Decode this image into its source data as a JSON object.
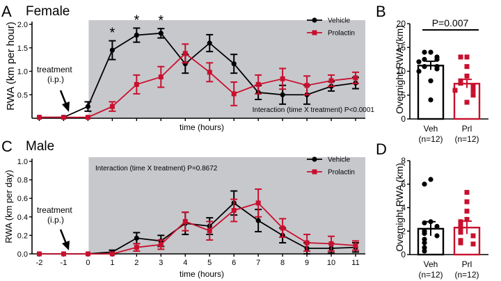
{
  "chart_data": [
    {
      "panel": "A",
      "title": "Female",
      "type": "line",
      "xlabel": "time (hours)",
      "ylabel": "RWA (km per hour)",
      "xlim": [
        -2.3,
        11.4
      ],
      "ylim": [
        0,
        2.0
      ],
      "yticks": [
        "0.5",
        "1.0",
        "1.5",
        "2.0"
      ],
      "shaded_from": 0,
      "treatment_label": "treatment\n(i.p.)",
      "annotation": "Interaction (time X treatment) P<0.0001",
      "significance_marks": [
        {
          "x": 1,
          "label": "*"
        },
        {
          "x": 2,
          "label": "*"
        },
        {
          "x": 3,
          "label": "*"
        }
      ],
      "x": [
        -2,
        -1,
        0,
        1,
        2,
        3,
        4,
        5,
        6,
        7,
        8,
        9,
        10,
        11
      ],
      "series": [
        {
          "name": "Vehicle",
          "color": "#000000",
          "marker": "circle",
          "values": [
            0.02,
            0.02,
            0.25,
            1.45,
            1.77,
            1.81,
            1.16,
            1.6,
            1.16,
            0.55,
            0.5,
            0.5,
            0.68,
            0.75
          ],
          "errors": [
            0.0,
            0.0,
            0.1,
            0.2,
            0.15,
            0.1,
            0.2,
            0.18,
            0.2,
            0.15,
            0.2,
            0.2,
            0.1,
            0.12
          ]
        },
        {
          "name": "Prolactin",
          "color": "#c8102e",
          "marker": "square",
          "values": [
            0.02,
            0.02,
            0.02,
            0.25,
            0.72,
            0.88,
            1.38,
            0.98,
            0.52,
            0.72,
            0.84,
            0.7,
            0.8,
            0.86
          ],
          "errors": [
            0.0,
            0.0,
            0.0,
            0.1,
            0.2,
            0.22,
            0.2,
            0.2,
            0.25,
            0.2,
            0.22,
            0.2,
            0.12,
            0.12
          ]
        }
      ]
    },
    {
      "panel": "B",
      "type": "bar",
      "ylabel": "Overnight RWA (km)",
      "ylim": [
        0,
        20
      ],
      "yticks": [
        "0",
        "5",
        "10",
        "15",
        "20"
      ],
      "categories": [
        "Veh\n(n=12)",
        "Prl\n(n=12)"
      ],
      "colors": [
        "#000000",
        "#c8102e"
      ],
      "values": [
        11.2,
        7.4
      ],
      "errors": [
        0.9,
        0.9
      ],
      "points": [
        [
          14,
          14,
          13,
          12.5,
          12.5,
          12,
          11,
          11,
          10.5,
          10,
          8,
          4
        ],
        [
          13,
          13,
          11,
          9,
          8,
          7.5,
          7,
          6.5,
          6,
          6,
          5,
          3.5
        ]
      ],
      "significance": "P=0.007"
    },
    {
      "panel": "C",
      "title": "Male",
      "type": "line",
      "xlabel": "time (hours)",
      "ylabel": "RWA (km per day)",
      "xlim": [
        -2.3,
        11.4
      ],
      "ylim": [
        0,
        1.0
      ],
      "yticks": [
        "0.0",
        "0.2",
        "0.4",
        "0.6",
        "0.8",
        "1.0"
      ],
      "xticks": [
        "-2",
        "-1",
        "0",
        "1",
        "2",
        "3",
        "4",
        "5",
        "6",
        "7",
        "8",
        "9",
        "10",
        "11"
      ],
      "shaded_from": 0,
      "treatment_label": "treatment\n(i.p.)",
      "annotation": "Interaction (time X treatment) P=0.8672",
      "x": [
        -2,
        -1,
        0,
        1,
        2,
        3,
        4,
        5,
        6,
        7,
        8,
        9,
        10,
        11
      ],
      "series": [
        {
          "name": "Vehicle",
          "color": "#000000",
          "marker": "circle",
          "values": [
            0.0,
            0.0,
            0.0,
            0.02,
            0.17,
            0.14,
            0.33,
            0.3,
            0.55,
            0.36,
            0.2,
            0.06,
            0.06,
            0.07
          ],
          "errors": [
            0.0,
            0.0,
            0.0,
            0.02,
            0.06,
            0.06,
            0.12,
            0.09,
            0.13,
            0.12,
            0.08,
            0.06,
            0.05,
            0.05
          ]
        },
        {
          "name": "Prolactin",
          "color": "#c8102e",
          "marker": "square",
          "values": [
            0.0,
            0.0,
            0.0,
            0.0,
            0.07,
            0.1,
            0.35,
            0.25,
            0.47,
            0.55,
            0.28,
            0.12,
            0.11,
            0.09
          ],
          "errors": [
            0.0,
            0.0,
            0.0,
            0.0,
            0.04,
            0.05,
            0.1,
            0.1,
            0.12,
            0.15,
            0.1,
            0.09,
            0.08,
            0.05
          ]
        }
      ]
    },
    {
      "panel": "D",
      "type": "bar",
      "ylabel": "Overnight RWA (km)",
      "ylim": [
        0,
        8
      ],
      "yticks": [
        "0",
        "2",
        "4",
        "6",
        "8"
      ],
      "categories": [
        "Veh\n(n=12)",
        "Prl\n(n=12)"
      ],
      "colors": [
        "#000000",
        "#c8102e"
      ],
      "values": [
        2.2,
        2.3
      ],
      "errors": [
        0.6,
        0.55
      ],
      "points": [
        [
          6.4,
          6.0,
          2.8,
          2.7,
          2.4,
          2.0,
          1.8,
          1.6,
          1.3,
          1.0,
          0.6,
          0.3
        ],
        [
          5.3,
          4.5,
          3.7,
          3.0,
          2.8,
          2.4,
          2.0,
          1.9,
          1.6,
          1.2,
          1.0,
          0.9
        ]
      ]
    }
  ]
}
